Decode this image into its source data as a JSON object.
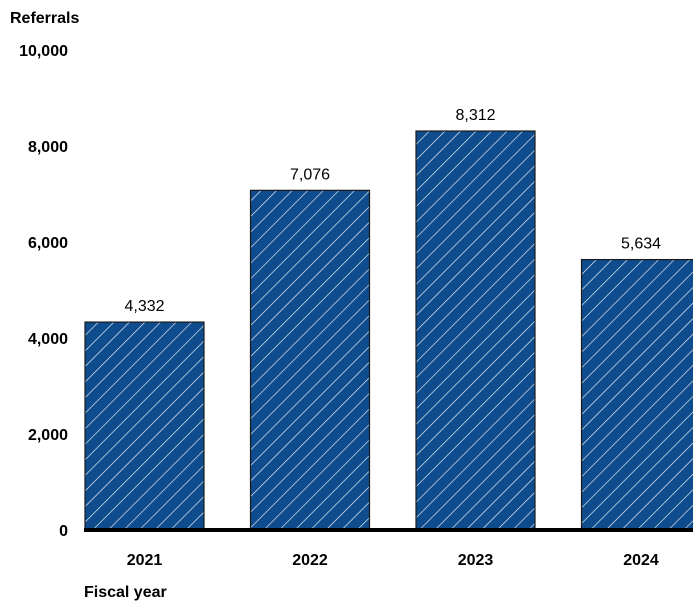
{
  "chart_data": {
    "type": "bar",
    "ylabel": "Referrals",
    "xlabel": "Fiscal year",
    "categories": [
      "2021",
      "2022",
      "2023",
      "2024"
    ],
    "values": [
      4332,
      7076,
      8312,
      5634
    ],
    "value_labels": [
      "4,332",
      "7,076",
      "8,312",
      "5,634"
    ],
    "ylim": [
      0,
      10000
    ],
    "yticks": [
      0,
      2000,
      4000,
      6000,
      8000,
      10000
    ],
    "ytick_labels": [
      "0",
      "2,000",
      "4,000",
      "6,000",
      "8,000",
      "10,000"
    ],
    "grid": false,
    "bar_color": "#0e4c8e",
    "hatch": "diagonal white lines"
  }
}
